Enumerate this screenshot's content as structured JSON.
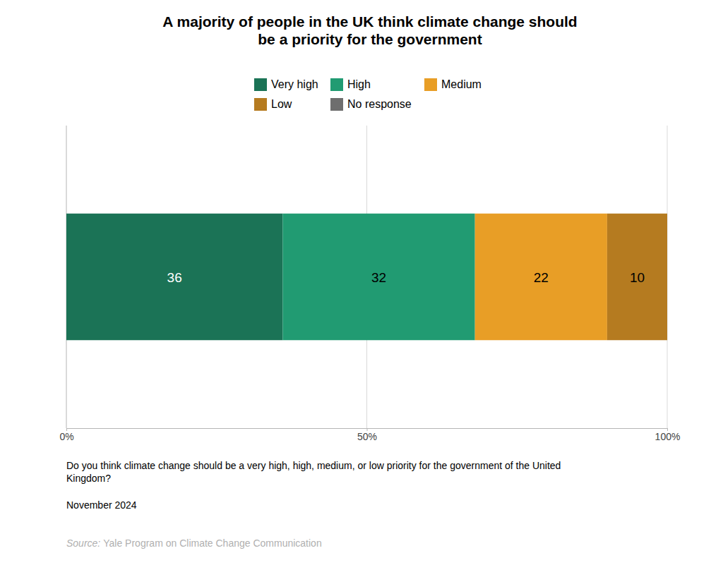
{
  "chart_data": {
    "type": "bar",
    "orientation": "horizontal",
    "stacked": true,
    "data_labels": true,
    "grid": true,
    "tick_labels": "x",
    "legend": "top",
    "title": [
      "A majority of people in the UK think climate change should",
      "be a priority for the government"
    ],
    "categories": [
      null
    ],
    "series": [
      {
        "name": "Very high",
        "color": "#1b7356",
        "values": [
          36
        ]
      },
      {
        "name": "High",
        "color": "#219b72",
        "values": [
          32
        ]
      },
      {
        "name": "Medium",
        "color": "#e89e26",
        "values": [
          22
        ]
      },
      {
        "name": "Low",
        "color": "#b57b20",
        "values": [
          10
        ]
      },
      {
        "name": "No response",
        "color": "#6e6e6e",
        "values": [
          0
        ]
      }
    ],
    "xlim": [
      0,
      100
    ],
    "xticks": [
      {
        "value": 0,
        "label": "0%"
      },
      {
        "value": 50,
        "label": "50%"
      },
      {
        "value": 100,
        "label": "100%"
      }
    ],
    "question": [
      "Do you think climate change should be a very high, high, medium, or low priority for the government of the United",
      "Kingdom?"
    ],
    "date": "November 2024",
    "source_label": "Source:",
    "source": "Yale Program on Climate Change Communication"
  }
}
